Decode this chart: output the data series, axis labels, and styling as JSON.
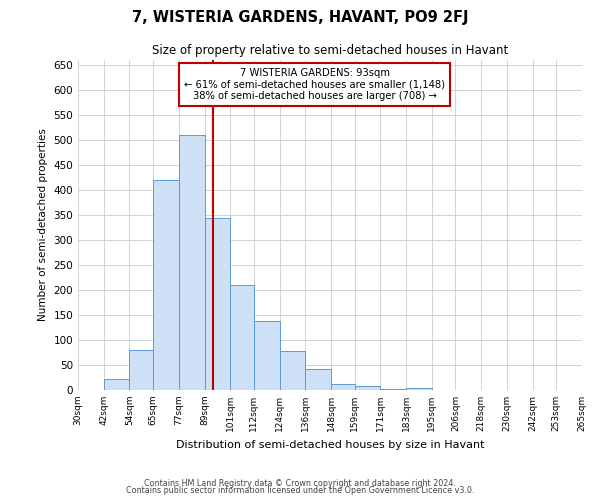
{
  "title": "7, WISTERIA GARDENS, HAVANT, PO9 2FJ",
  "subtitle": "Size of property relative to semi-detached houses in Havant",
  "xlabel": "Distribution of semi-detached houses by size in Havant",
  "ylabel": "Number of semi-detached properties",
  "bin_labels": [
    "30sqm",
    "42sqm",
    "54sqm",
    "65sqm",
    "77sqm",
    "89sqm",
    "101sqm",
    "112sqm",
    "124sqm",
    "136sqm",
    "148sqm",
    "159sqm",
    "171sqm",
    "183sqm",
    "195sqm",
    "206sqm",
    "218sqm",
    "230sqm",
    "242sqm",
    "253sqm",
    "265sqm"
  ],
  "bin_edges": [
    30,
    42,
    54,
    65,
    77,
    89,
    101,
    112,
    124,
    136,
    148,
    159,
    171,
    183,
    195,
    206,
    218,
    230,
    242,
    253,
    265
  ],
  "values": [
    0,
    22,
    80,
    420,
    510,
    345,
    210,
    138,
    78,
    42,
    12,
    8,
    2,
    5,
    0,
    0,
    0,
    0,
    0,
    0
  ],
  "bar_color": "#cde0f5",
  "bar_edge_color": "#5b9bd5",
  "property_line_x": 93,
  "property_line_color": "#c00000",
  "annotation_title": "7 WISTERIA GARDENS: 93sqm",
  "annotation_line1": "← 61% of semi-detached houses are smaller (1,148)",
  "annotation_line2": "38% of semi-detached houses are larger (708) →",
  "annotation_box_color": "#c00000",
  "ylim": [
    0,
    660
  ],
  "yticks": [
    0,
    50,
    100,
    150,
    200,
    250,
    300,
    350,
    400,
    450,
    500,
    550,
    600,
    650
  ],
  "footer1": "Contains HM Land Registry data © Crown copyright and database right 2024.",
  "footer2": "Contains public sector information licensed under the Open Government Licence v3.0.",
  "background_color": "#ffffff",
  "grid_color": "#cccccc"
}
